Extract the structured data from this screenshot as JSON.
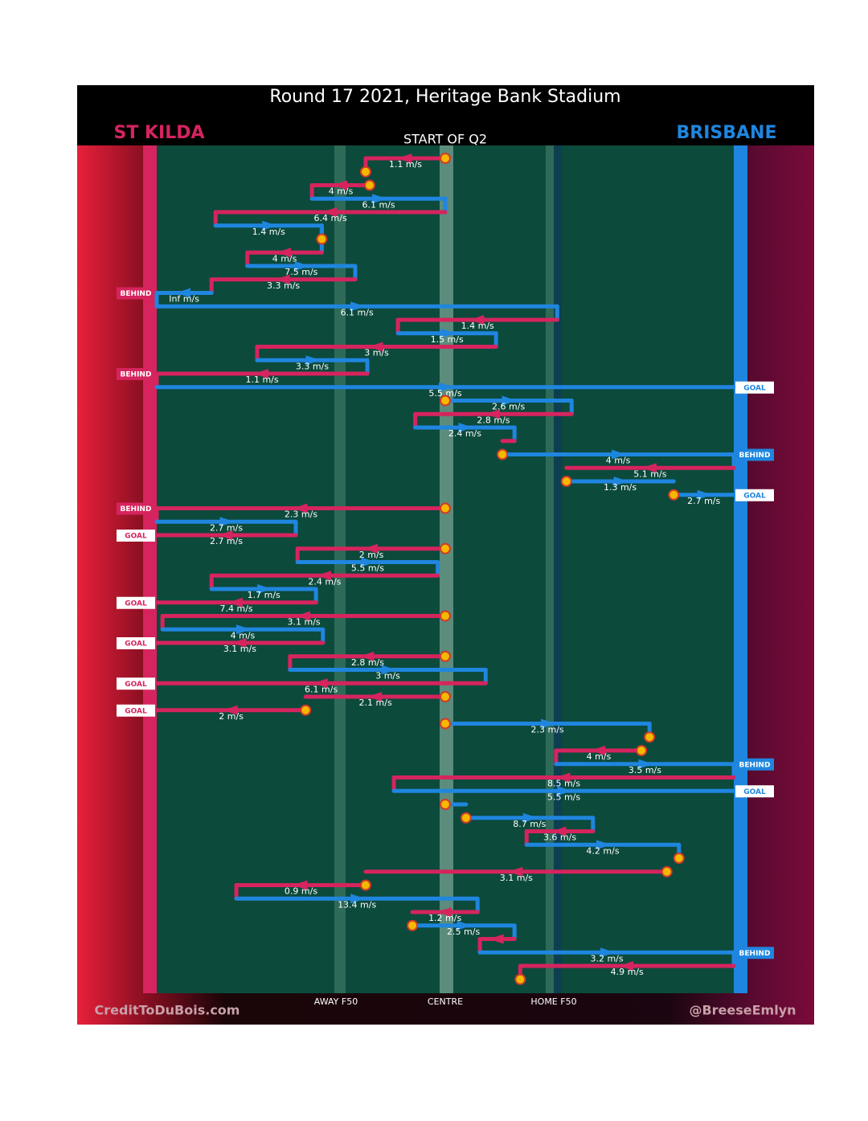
{
  "title": "Round 17 2021, Heritage Bank Stadium",
  "subtitle": "START OF Q2",
  "teams": [
    {
      "name": "ST KILDA",
      "color": "#d6245e"
    },
    {
      "name": "BRISBANE",
      "color": "#1f86df"
    }
  ],
  "field_labels": [
    "AWAY F50",
    "CENTRE",
    "HOME F50"
  ],
  "credits": [
    "CreditToDuBois.com",
    "@BreeseEmlyn"
  ],
  "moves": [
    {
      "team": 0,
      "from": 50,
      "to": 36.2,
      "speed": "1.1 m/s",
      "start_dot": true,
      "end_dot": true
    },
    {
      "team": 0,
      "from": 36.9,
      "to": 26.9,
      "speed": "4 m/s",
      "start_dot": true
    },
    {
      "team": 1,
      "from": 26.9,
      "to": 50,
      "speed": "6.1 m/s"
    },
    {
      "team": 0,
      "from": 50,
      "to": 10.2,
      "speed": "6.4 m/s"
    },
    {
      "team": 1,
      "from": 10.2,
      "to": 28.6,
      "speed": "1.4 m/s",
      "end_dot": true
    },
    {
      "team": 0,
      "from": 28.6,
      "to": 15.7,
      "speed": "4 m/s"
    },
    {
      "team": 1,
      "from": 15.7,
      "to": 34.4,
      "speed": "7.5 m/s"
    },
    {
      "team": 0,
      "from": 34.4,
      "to": 9.5,
      "speed": "3.3 m/s"
    },
    {
      "team": 1,
      "from": 9.5,
      "to": 0,
      "speed": "Inf m/s",
      "outcome": "BEHIND"
    },
    {
      "team": 1,
      "from": 0,
      "to": 69.4,
      "speed": "6.1 m/s"
    },
    {
      "team": 0,
      "from": 69.4,
      "to": 41.8,
      "speed": "1.4 m/s"
    },
    {
      "team": 1,
      "from": 41.8,
      "to": 58.8,
      "speed": "1.5 m/s"
    },
    {
      "team": 0,
      "from": 58.8,
      "to": 17.4,
      "speed": "3 m/s"
    },
    {
      "team": 1,
      "from": 17.4,
      "to": 36.5,
      "speed": "3.3 m/s"
    },
    {
      "team": 0,
      "from": 36.5,
      "to": 0,
      "speed": "1.1 m/s",
      "outcome": "BEHIND"
    },
    {
      "team": 1,
      "from": 0,
      "to": 100,
      "speed": "5.5 m/s",
      "outcome": "GOAL"
    },
    {
      "team": 1,
      "from": 50,
      "to": 71.9,
      "speed": "2.6 m/s",
      "start_dot": true
    },
    {
      "team": 0,
      "from": 71.9,
      "to": 44.8,
      "speed": "2.8 m/s"
    },
    {
      "team": 1,
      "from": 44.8,
      "to": 62.0,
      "speed": "2.4 m/s"
    },
    {
      "team": 0,
      "from": 62.0,
      "to": 59.9
    },
    {
      "team": 1,
      "from": 59.9,
      "to": 100,
      "speed": "4 m/s",
      "start_dot": true,
      "outcome": "BEHIND"
    },
    {
      "team": 0,
      "from": 100,
      "to": 71.0,
      "speed": "5.1 m/s"
    },
    {
      "team": 1,
      "from": 71.0,
      "to": 89.6,
      "speed": "1.3 m/s",
      "start_dot": true
    },
    {
      "team": 1,
      "from": 89.6,
      "to": 100,
      "speed": "2.7 m/s",
      "start_dot": true,
      "outcome": "GOAL"
    },
    {
      "team": 0,
      "from": 50,
      "to": 0,
      "speed": "2.3 m/s",
      "start_dot": true,
      "outcome": "BEHIND"
    },
    {
      "team": 1,
      "from": 0,
      "to": 24.1,
      "speed": "2.7 m/s"
    },
    {
      "team": 0,
      "from": 24.1,
      "to": 0,
      "speed": "2.7 m/s",
      "outcome": "GOAL"
    },
    {
      "team": 0,
      "from": 50,
      "to": 24.4,
      "speed": "2 m/s",
      "start_dot": true
    },
    {
      "team": 1,
      "from": 24.4,
      "to": 48.7,
      "speed": "5.5 m/s"
    },
    {
      "team": 0,
      "from": 48.7,
      "to": 9.5,
      "speed": "2.4 m/s"
    },
    {
      "team": 1,
      "from": 9.5,
      "to": 27.6,
      "speed": "1.7 m/s"
    },
    {
      "team": 0,
      "from": 27.6,
      "to": 0,
      "speed": "7.4 m/s",
      "outcome": "GOAL"
    },
    {
      "team": 0,
      "from": 50,
      "to": 1.0,
      "speed": "3.1 m/s",
      "start_dot": true
    },
    {
      "team": 1,
      "from": 1.0,
      "to": 28.8,
      "speed": "4 m/s"
    },
    {
      "team": 0,
      "from": 28.8,
      "to": 0,
      "speed": "3.1 m/s",
      "outcome": "GOAL"
    },
    {
      "team": 0,
      "from": 50,
      "to": 23.1,
      "speed": "2.8 m/s",
      "start_dot": true
    },
    {
      "team": 1,
      "from": 23.1,
      "to": 57.0,
      "speed": "3 m/s"
    },
    {
      "team": 0,
      "from": 57.0,
      "to": 0,
      "speed": "6.1 m/s",
      "outcome": "GOAL"
    },
    {
      "team": 0,
      "from": 50,
      "to": 25.8,
      "speed": "2.1 m/s",
      "start_dot": true
    },
    {
      "team": 0,
      "from": 25.8,
      "to": 0,
      "speed": "2 m/s",
      "start_dot": true,
      "outcome": "GOAL"
    },
    {
      "team": 1,
      "from": 50,
      "to": 85.4,
      "speed": "2.3 m/s",
      "start_dot": true,
      "end_dot": true
    },
    {
      "team": 0,
      "from": 84.0,
      "to": 69.2,
      "speed": "4 m/s",
      "start_dot": true
    },
    {
      "team": 1,
      "from": 69.2,
      "to": 100,
      "speed": "3.5 m/s",
      "outcome": "BEHIND"
    },
    {
      "team": 0,
      "from": 100,
      "to": 41.1,
      "speed": "8.5 m/s"
    },
    {
      "team": 1,
      "from": 41.1,
      "to": 100,
      "speed": "5.5 m/s",
      "outcome": "GOAL"
    },
    {
      "team": 1,
      "from": 50,
      "to": 53.6,
      "start_dot": true
    },
    {
      "team": 1,
      "from": 53.6,
      "to": 75.6,
      "speed": "8.7 m/s",
      "start_dot": true
    },
    {
      "team": 0,
      "from": 75.6,
      "to": 64.1,
      "speed": "3.6 m/s"
    },
    {
      "team": 1,
      "from": 64.1,
      "to": 90.5,
      "speed": "4.2 m/s",
      "end_dot": true
    },
    {
      "team": 0,
      "from": 88.4,
      "to": 36.2,
      "speed": "3.1 m/s",
      "start_dot": true
    },
    {
      "team": 0,
      "from": 36.2,
      "to": 13.8,
      "speed": "0.9 m/s",
      "start_dot": true
    },
    {
      "team": 1,
      "from": 13.8,
      "to": 55.6,
      "speed": "13.4 m/s"
    },
    {
      "team": 0,
      "from": 55.6,
      "to": 44.3,
      "speed": "1.2 m/s"
    },
    {
      "team": 1,
      "from": 44.3,
      "to": 62.0,
      "speed": "2.5 m/s",
      "start_dot": true
    },
    {
      "team": 0,
      "from": 62.0,
      "to": 56.0
    },
    {
      "team": 1,
      "from": 56.0,
      "to": 100,
      "speed": "3.2 m/s",
      "outcome": "BEHIND"
    },
    {
      "team": 0,
      "from": 100,
      "to": 63.0,
      "speed": "4.9 m/s",
      "end_dot": true
    }
  ]
}
